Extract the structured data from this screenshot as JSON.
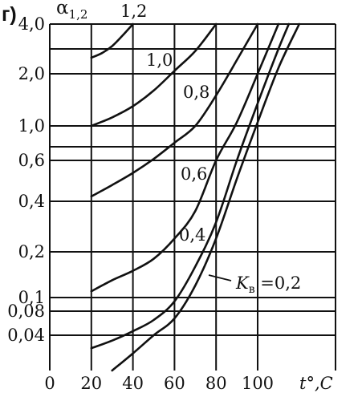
{
  "chart_data": {
    "type": "line",
    "panel_label": "г)",
    "ylabel_main": "α",
    "ylabel_sub": "1,2",
    "xlabel": "t°,C",
    "xlim": [
      0,
      125
    ],
    "x_ticks": [
      {
        "value": 0,
        "label": "0"
      },
      {
        "value": 20,
        "label": "20"
      },
      {
        "value": 40,
        "label": "40"
      },
      {
        "value": 60,
        "label": "60"
      },
      {
        "value": 80,
        "label": "80"
      },
      {
        "value": 100,
        "label": "100"
      }
    ],
    "y_ticks": [
      {
        "value": 4.0,
        "label": "4,0"
      },
      {
        "value": 2.0,
        "label": "2,0"
      },
      {
        "value": 1.0,
        "label": "1,0"
      },
      {
        "value": 0.6,
        "label": "0,6"
      },
      {
        "value": 0.4,
        "label": "0,4"
      },
      {
        "value": 0.2,
        "label": "0,2"
      },
      {
        "value": 0.1,
        "label": "0,1"
      },
      {
        "value": 0.08,
        "label": "0,08"
      },
      {
        "value": 0.04,
        "label": "0,04"
      }
    ],
    "extra_gridlines_y": [
      3.0,
      0.7
    ],
    "grid": true,
    "series": [
      {
        "label": "1,2",
        "x": [
          20,
          25,
          30,
          35,
          40
        ],
        "y": [
          2.6,
          2.8,
          3.1,
          3.5,
          4.0
        ]
      },
      {
        "label": "1,0",
        "x": [
          20,
          30,
          40,
          50,
          60,
          70,
          80
        ],
        "y": [
          1.0,
          1.12,
          1.3,
          1.6,
          2.1,
          2.9,
          4.0
        ]
      },
      {
        "label": "0,8",
        "x": [
          20,
          30,
          40,
          50,
          60,
          70,
          80,
          90,
          100
        ],
        "y": [
          0.42,
          0.47,
          0.53,
          0.61,
          0.75,
          1.0,
          1.5,
          2.5,
          4.0
        ]
      },
      {
        "label": "0,6",
        "x": [
          20,
          30,
          40,
          50,
          60,
          70,
          80,
          90,
          100,
          110
        ],
        "y": [
          0.11,
          0.13,
          0.15,
          0.18,
          0.24,
          0.35,
          0.6,
          1.05,
          2.0,
          4.0
        ]
      },
      {
        "label": "0,4",
        "x": [
          20,
          30,
          40,
          50,
          60,
          70,
          80,
          90,
          100,
          110,
          115
        ],
        "y": [
          0.031,
          0.036,
          0.045,
          0.062,
          0.094,
          0.16,
          0.3,
          0.6,
          1.35,
          3.0,
          4.0
        ]
      },
      {
        "label": "K_в =0,2",
        "x": [
          30,
          40,
          50,
          60,
          70,
          80,
          90,
          100,
          110,
          120
        ],
        "y": [
          0.02,
          0.028,
          0.04,
          0.065,
          0.12,
          0.24,
          0.5,
          1.05,
          2.2,
          4.0
        ]
      }
    ],
    "curve_labels": [
      {
        "series": 0,
        "text": "1,2"
      },
      {
        "series": 1,
        "text": "1,0"
      },
      {
        "series": 2,
        "text": "0,8"
      },
      {
        "series": 3,
        "text": "0,6"
      },
      {
        "series": 4,
        "text": "0,4"
      },
      {
        "series": 5,
        "text_main": "K",
        "text_sub": "в",
        "text_rest": " =0,2"
      }
    ]
  }
}
